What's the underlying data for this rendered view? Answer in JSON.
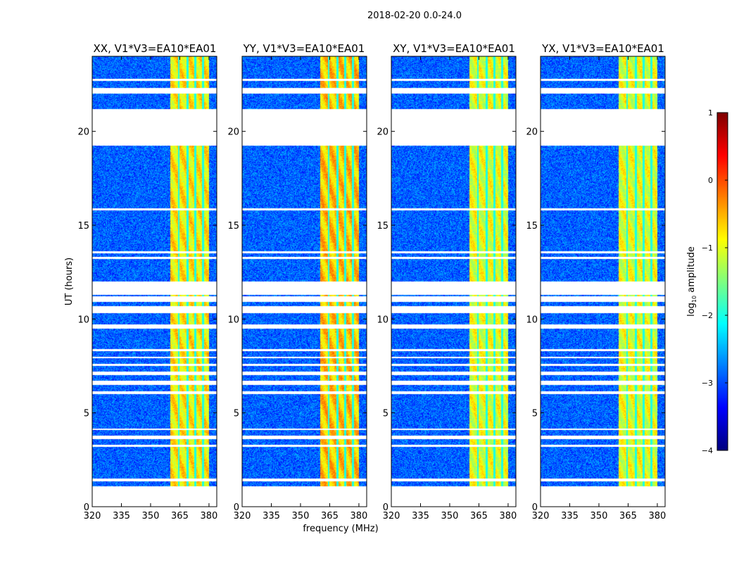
{
  "chart_data": {
    "type": "heatmap",
    "title": "2018-02-20 0.0-24.0",
    "xlabel": "frequency (MHz)",
    "ylabel": "UT (hours)",
    "xlim": [
      320,
      384
    ],
    "ylim": [
      0,
      24
    ],
    "xticks": [
      "320",
      "335",
      "350",
      "365",
      "380"
    ],
    "xtick_values": [
      320,
      335,
      350,
      365,
      380
    ],
    "yticks": [
      "0",
      "5",
      "10",
      "15",
      "20"
    ],
    "ytick_values": [
      0,
      5,
      10,
      15,
      20
    ],
    "panels": [
      {
        "title": "XX, V1*V3=EA10*EA01",
        "band_level": -0.8
      },
      {
        "title": "YY, V1*V3=EA10*EA01",
        "band_level": -0.6
      },
      {
        "title": "XY, V1*V3=EA10*EA01",
        "band_level": -1.0
      },
      {
        "title": "YX, V1*V3=EA10*EA01",
        "band_level": -1.0
      }
    ],
    "time_segments_hours": [
      [
        1.1,
        1.35
      ],
      [
        1.5,
        3.2
      ],
      [
        3.3,
        3.6
      ],
      [
        3.8,
        4.1
      ],
      [
        4.15,
        6.0
      ],
      [
        6.15,
        6.5
      ],
      [
        6.7,
        7.0
      ],
      [
        7.2,
        7.5
      ],
      [
        7.6,
        7.9
      ],
      [
        8.0,
        8.3
      ],
      [
        8.4,
        9.5
      ],
      [
        9.7,
        10.3
      ],
      [
        10.7,
        10.9
      ],
      [
        11.2,
        11.3
      ],
      [
        12.0,
        13.2
      ],
      [
        13.3,
        13.5
      ],
      [
        13.6,
        15.8
      ],
      [
        15.9,
        19.25
      ],
      [
        21.2,
        22.0
      ],
      [
        22.3,
        22.7
      ],
      [
        22.8,
        24
      ]
    ],
    "spectral_profile": {
      "background_level": -2.9,
      "band_range_mhz": [
        360,
        380
      ],
      "notch_freqs_mhz": [
        364.5,
        369,
        373,
        377
      ],
      "notch_level": -2.0
    },
    "colorbar": {
      "label": "log10 amplitude",
      "label_main": "log",
      "label_sub": "10",
      "label_rest": " amplitude",
      "range": [
        -4,
        1
      ],
      "ticks": [
        "−4",
        "−3",
        "−2",
        "−1",
        "0",
        "1"
      ],
      "tick_values": [
        -4,
        -3,
        -2,
        -1,
        0,
        1
      ],
      "colormap": "jet"
    }
  }
}
